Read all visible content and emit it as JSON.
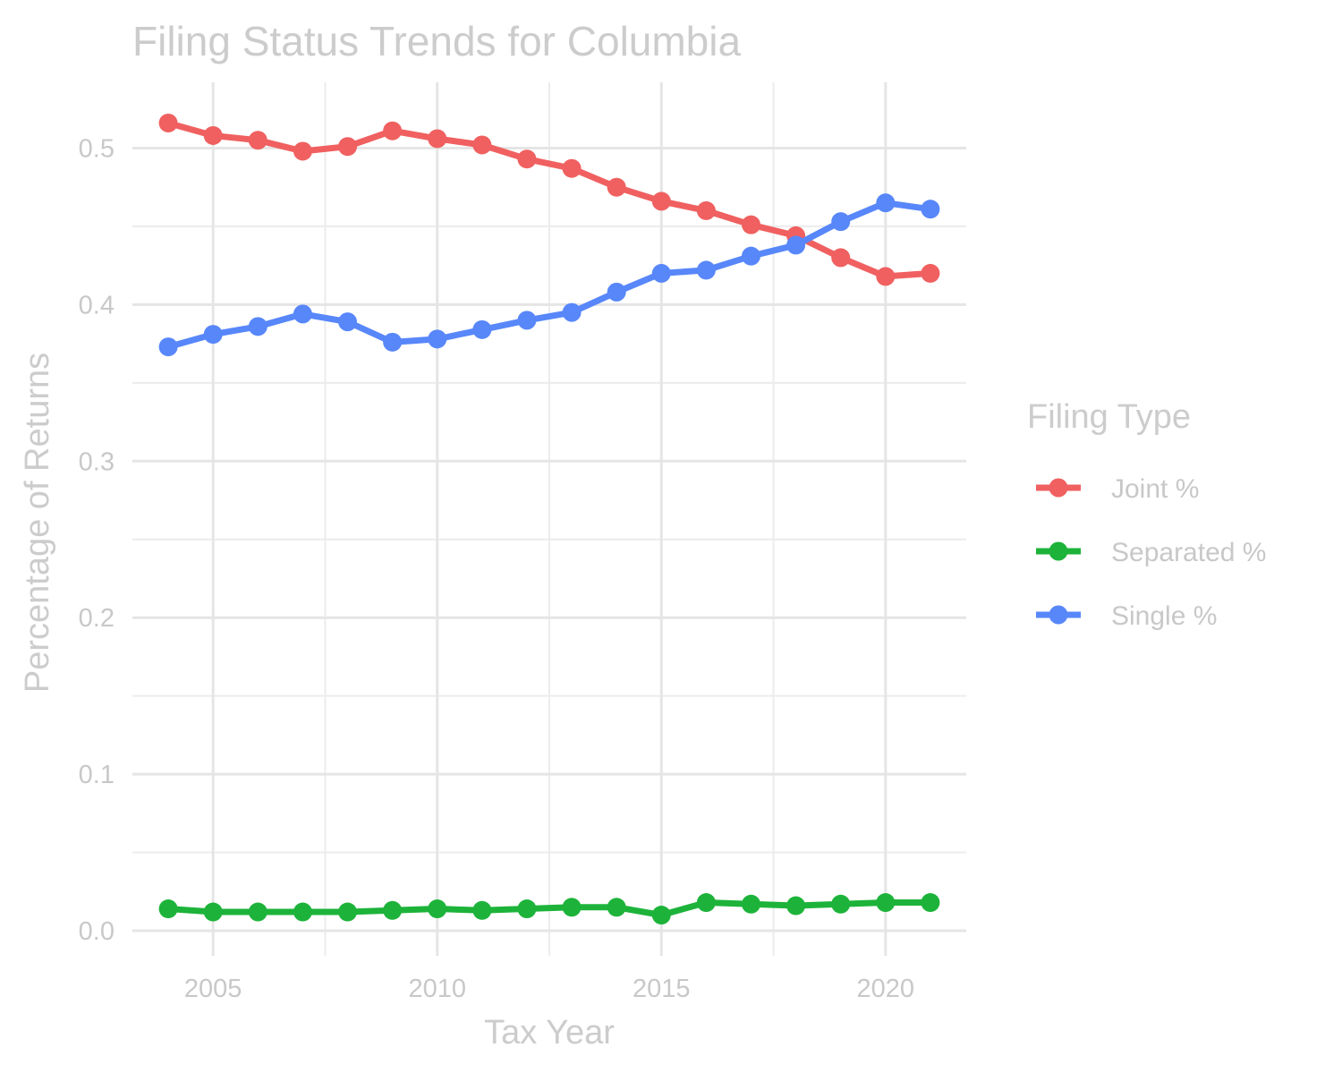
{
  "chart_data": {
    "type": "line",
    "title": "Filing Status Trends for Columbia",
    "xlabel": "Tax Year",
    "ylabel": "Percentage of Returns",
    "xlim": [
      2003.2,
      2021.8
    ],
    "ylim": [
      -0.016,
      0.542
    ],
    "x_ticks": [
      2005,
      2010,
      2015,
      2020
    ],
    "x_tick_labels": [
      "2005",
      "2010",
      "2015",
      "2020"
    ],
    "y_ticks": [
      0.0,
      0.1,
      0.2,
      0.3,
      0.4,
      0.5
    ],
    "y_tick_labels": [
      "0.0",
      "0.1",
      "0.2",
      "0.3",
      "0.4",
      "0.5"
    ],
    "grid": true,
    "legend": {
      "title": "Filing Type",
      "position": "right"
    },
    "x": [
      2004,
      2005,
      2006,
      2007,
      2008,
      2009,
      2010,
      2011,
      2012,
      2013,
      2014,
      2015,
      2016,
      2017,
      2018,
      2019,
      2020,
      2021
    ],
    "series": [
      {
        "name": "Joint %",
        "color": "#f06060",
        "values": [
          0.516,
          0.508,
          0.505,
          0.498,
          0.501,
          0.511,
          0.506,
          0.502,
          0.493,
          0.487,
          0.475,
          0.466,
          0.46,
          0.451,
          0.444,
          0.43,
          0.418,
          0.42
        ]
      },
      {
        "name": "Separated %",
        "color": "#1db33a",
        "values": [
          0.014,
          0.012,
          0.012,
          0.012,
          0.012,
          0.013,
          0.014,
          0.013,
          0.014,
          0.015,
          0.015,
          0.01,
          0.018,
          0.017,
          0.016,
          0.017,
          0.018,
          0.018
        ]
      },
      {
        "name": "Single %",
        "color": "#5887fa",
        "values": [
          0.373,
          0.381,
          0.386,
          0.394,
          0.389,
          0.376,
          0.378,
          0.384,
          0.39,
          0.395,
          0.408,
          0.42,
          0.422,
          0.431,
          0.438,
          0.453,
          0.465,
          0.461
        ]
      }
    ]
  }
}
